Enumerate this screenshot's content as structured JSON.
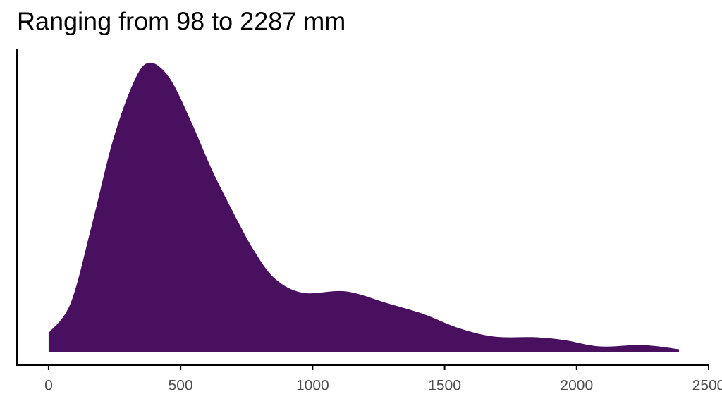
{
  "chart_data": {
    "type": "density",
    "title": "Ranging from 98 to 2287 mm",
    "x": [
      0,
      83,
      163,
      243,
      324,
      382,
      457,
      537,
      618,
      698,
      778,
      858,
      965,
      1126,
      1286,
      1420,
      1554,
      1687,
      1848,
      1955,
      2088,
      2249,
      2388
    ],
    "values": [
      0.000103,
      0.000262,
      0.00068,
      0.001136,
      0.001459,
      0.001558,
      0.001478,
      0.00125,
      0.000984,
      0.000756,
      0.000547,
      0.000395,
      0.000319,
      0.000327,
      0.000262,
      0.000205,
      0.000129,
      8.36e-05,
      7.98e-05,
      6.46e-05,
      3.04e-05,
      3.8e-05,
      1.52e-05
    ],
    "color": "#48105e",
    "xlim": [
      -120,
      2500
    ],
    "ylim": [
      -7e-05,
      0.00163
    ],
    "xticks": [
      0,
      500,
      1000,
      1500,
      2000,
      2500
    ],
    "grid": false
  }
}
